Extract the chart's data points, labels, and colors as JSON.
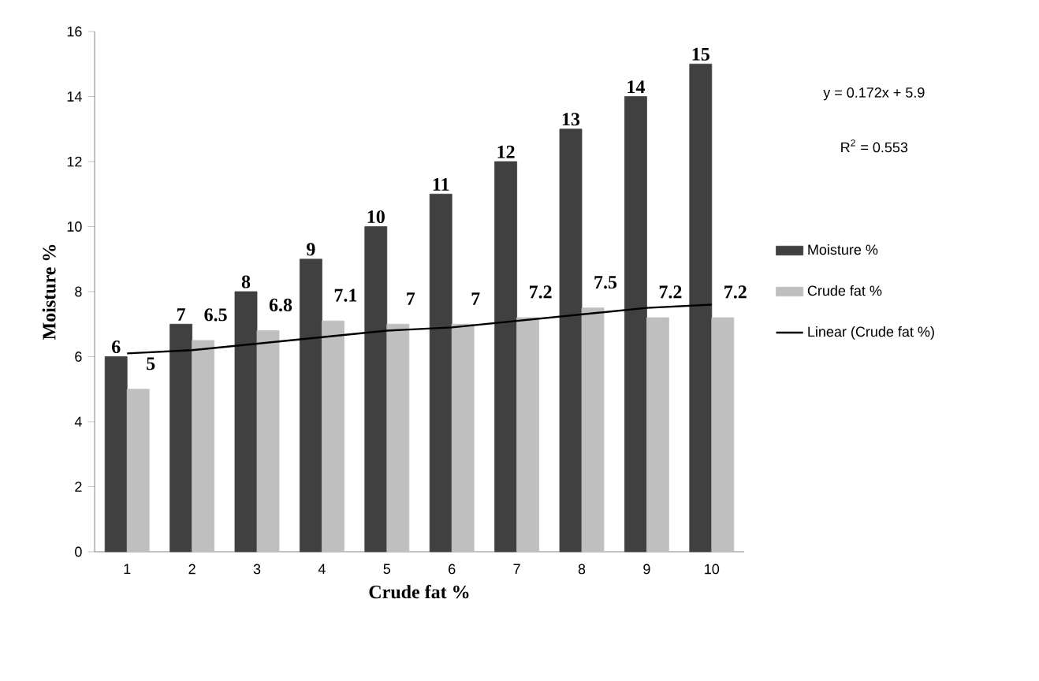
{
  "chart_data": {
    "type": "bar",
    "xlabel": "Crude fat %",
    "ylabel": "Moisture %",
    "categories": [
      "1",
      "2",
      "3",
      "4",
      "5",
      "6",
      "7",
      "8",
      "9",
      "10"
    ],
    "series": [
      {
        "name": "Moisture %",
        "color": "#404040",
        "values": [
          6,
          7,
          8,
          9,
          10,
          11,
          12,
          13,
          14,
          15
        ],
        "value_labels": [
          "6",
          "7",
          "8",
          "9",
          "10",
          "11",
          "12",
          "13",
          "14",
          "15"
        ]
      },
      {
        "name": "Crude fat %",
        "color": "#bfbfbf",
        "values": [
          5,
          6.5,
          6.8,
          7.1,
          7,
          7,
          7.2,
          7.5,
          7.2,
          7.2
        ],
        "value_labels": [
          "5",
          "6.5",
          "6.8",
          "7.1",
          "7",
          "7",
          "7.2",
          "7.5",
          "7.2",
          "7.2"
        ]
      },
      {
        "name": "Linear (Crude fat %)",
        "type": "line",
        "color": "#000000",
        "values": [
          6.1,
          6.2,
          6.4,
          6.6,
          6.8,
          6.9,
          7.1,
          7.3,
          7.5,
          7.6
        ]
      }
    ],
    "ylim": [
      0,
      16
    ],
    "yticks": [
      0,
      2,
      4,
      6,
      8,
      10,
      12,
      14,
      16
    ],
    "legend": "right",
    "marker": "none",
    "annotations": [
      "y = 0.172x + 5.9",
      "R$^{2}$ = 0.553"
    ]
  }
}
